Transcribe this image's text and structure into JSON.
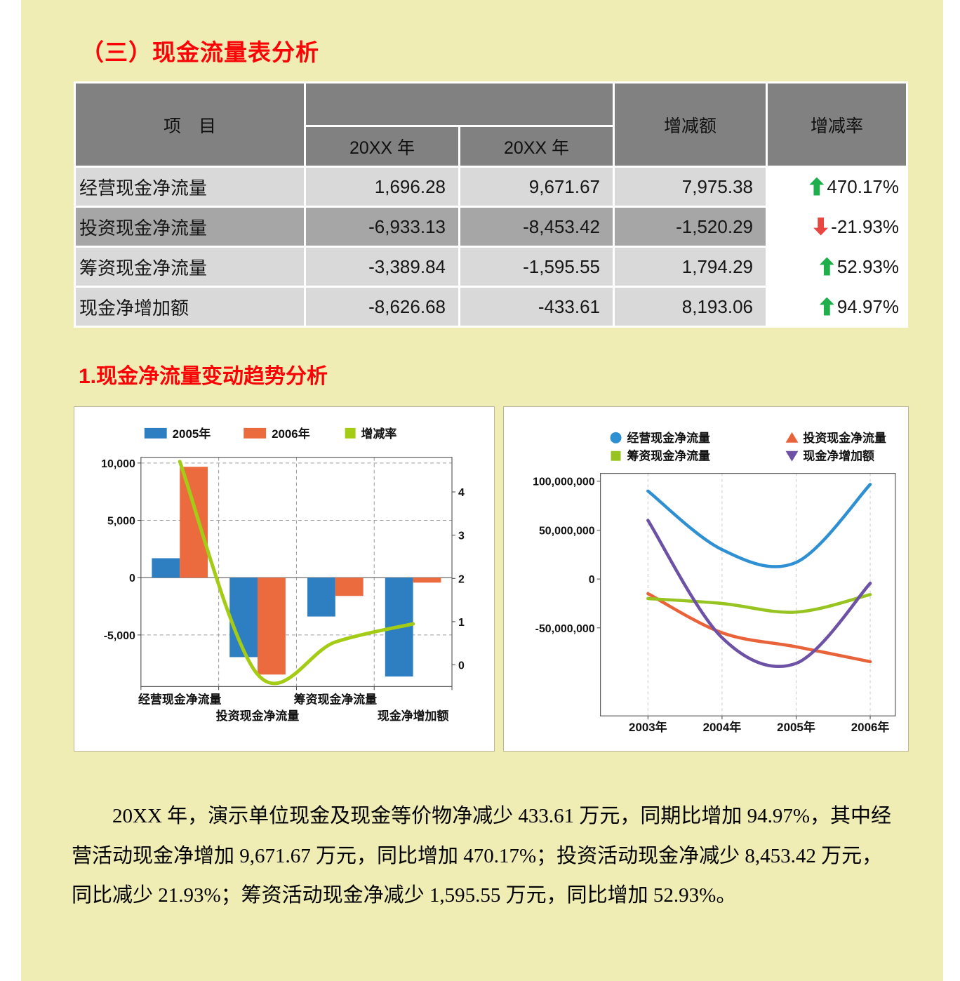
{
  "page": {
    "bg_color": "#F0EDB4",
    "title": "（三）现金流量表分析",
    "section1_title": "1.现金净流量变动趋势分析",
    "paragraph": "20XX 年，演示单位现金及现金等价物净减少 433.61 万元，同期比增加 94.97%，其中经营活动现金净增加 9,671.67 万元，同比增加 470.17%；投资活动现金净减少 8,453.42 万元，同比减少 21.93%；筹资活动现金净减少 1,595.55 万元，同比增加 52.93%。"
  },
  "colors": {
    "title_red": "#FB0207",
    "table_header_gray": "#818181",
    "row_light_gray": "#D9D9D9",
    "row_dark_gray": "#A6A6A6",
    "arrow_up_green": "#1FAE4C",
    "arrow_down_red": "#E84640"
  },
  "table": {
    "header": {
      "col_item": "项　目",
      "col_year1": "20XX 年",
      "col_year2": "20XX 年",
      "col_change": "增减额",
      "col_rate": "增减率"
    },
    "rows": [
      {
        "item": "经营现金净流量",
        "y1": "1,696.28",
        "y2": "9,671.67",
        "change": "7,975.38",
        "rate": "470.17%",
        "dir": "up"
      },
      {
        "item": "投资现金净流量",
        "y1": "-6,933.13",
        "y2": "-8,453.42",
        "change": "-1,520.29",
        "rate": "-21.93%",
        "dir": "down"
      },
      {
        "item": "筹资现金净流量",
        "y1": "-3,389.84",
        "y2": "-1,595.55",
        "change": "1,794.29",
        "rate": "52.93%",
        "dir": "up"
      },
      {
        "item": "现金净增加额",
        "y1": "-8,626.68",
        "y2": "-433.61",
        "change": "8,193.06",
        "rate": "94.97%",
        "dir": "up"
      }
    ]
  },
  "chart_data": [
    {
      "type": "bar",
      "subtype": "bar+line-combo",
      "categories": [
        "经营现金净流量",
        "投资现金净流量",
        "筹资现金净流量",
        "现金净增加额"
      ],
      "series": [
        {
          "name": "2005年",
          "kind": "bar",
          "color": "#2E7FC2",
          "values": [
            1696.28,
            -6933.13,
            -3389.84,
            -8626.68
          ]
        },
        {
          "name": "2006年",
          "kind": "bar",
          "color": "#EC6B3E",
          "values": [
            9671.67,
            -8453.42,
            -1595.55,
            -433.61
          ]
        },
        {
          "name": "增减率",
          "kind": "line",
          "axis": "right",
          "color": "#A5CC14",
          "values": [
            4.7017,
            -0.2193,
            0.5293,
            0.9497
          ]
        }
      ],
      "left_axis": {
        "min": -9500,
        "max": 10500,
        "ticks": [
          10000,
          5000,
          0,
          -5000
        ],
        "tick_labels": [
          "10,000",
          "5,000",
          "0",
          "-5,000"
        ]
      },
      "right_axis": {
        "min": -0.5,
        "max": 4.8,
        "ticks": [
          4,
          3,
          2,
          1,
          0
        ],
        "tick_labels": [
          "4",
          "3",
          "2",
          "1",
          "0"
        ]
      },
      "grid": "dashed",
      "legend_position": "top"
    },
    {
      "type": "line",
      "x": [
        "2003年",
        "2004年",
        "2005年",
        "2006年"
      ],
      "series": [
        {
          "name": "经营现金净流量",
          "color": "#2E8FD2",
          "marker": "circle",
          "values": [
            90000000,
            30000000,
            16962800,
            96716700
          ]
        },
        {
          "name": "投资现金净流量",
          "color": "#E8633A",
          "marker": "triangle",
          "values": [
            -15000000,
            -55000000,
            -69331300,
            -84534200
          ]
        },
        {
          "name": "筹资现金净流量",
          "color": "#97C421",
          "marker": "square",
          "values": [
            -20000000,
            -25000000,
            -33898400,
            -15955500
          ]
        },
        {
          "name": "现金净增加额",
          "color": "#6C51A5",
          "marker": "triangle-down",
          "values": [
            60000000,
            -60000000,
            -86266800,
            -4336100
          ]
        }
      ],
      "y_axis": {
        "min": -140000000,
        "max": 108000000,
        "ticks": [
          100000000,
          50000000,
          0,
          -50000000
        ],
        "tick_labels": [
          "100,000,000",
          "50,000,000",
          "0",
          "-50,000,000"
        ]
      },
      "legend_position": "top"
    }
  ]
}
